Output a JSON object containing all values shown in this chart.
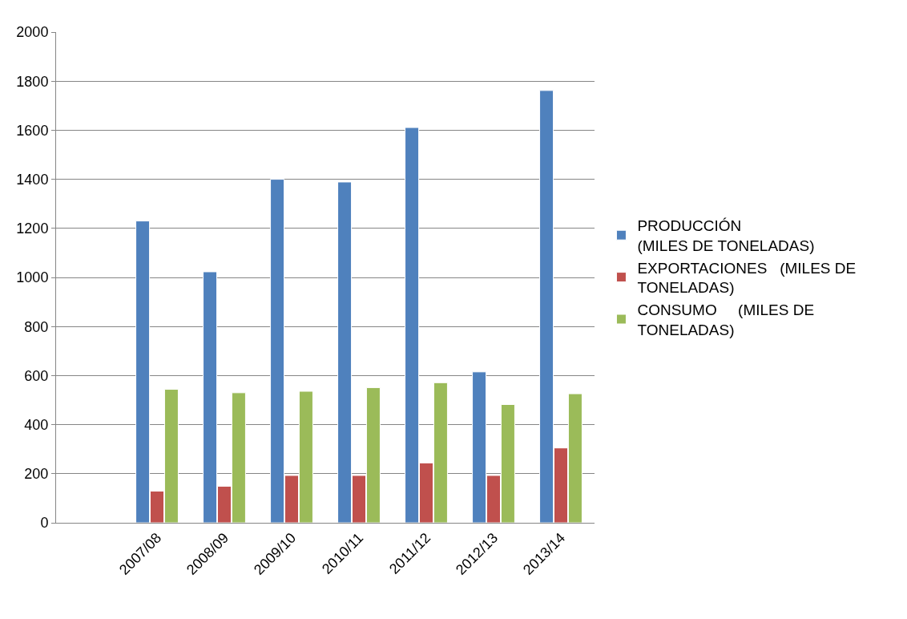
{
  "chart_data": {
    "type": "bar",
    "categories": [
      null,
      "2007/08",
      "2008/09",
      "2009/10",
      "2010/11",
      "2011/12",
      "2012/13",
      "2013/14"
    ],
    "series": [
      {
        "name": "PRODUCCIÓN\n(MILES DE TONELADAS)",
        "color": "#4f81bd",
        "values": [
          null,
          1230,
          1023,
          1400,
          1389,
          1611,
          615,
          1762
        ]
      },
      {
        "name": "EXPORTACIONES   (MILES DE\nTONELADAS)",
        "color": "#c0504d",
        "values": [
          null,
          129,
          149,
          193,
          193,
          244,
          193,
          305
        ]
      },
      {
        "name": "CONSUMO     (MILES DE\nTONELADAS)",
        "color": "#9bbb59",
        "values": [
          null,
          544,
          530,
          536,
          551,
          571,
          482,
          526
        ]
      }
    ],
    "ylim": [
      0,
      2000
    ],
    "yticks": [
      0,
      200,
      400,
      600,
      800,
      1000,
      1200,
      1400,
      1600,
      1800,
      2000
    ],
    "grid": "y",
    "legend": "right"
  }
}
